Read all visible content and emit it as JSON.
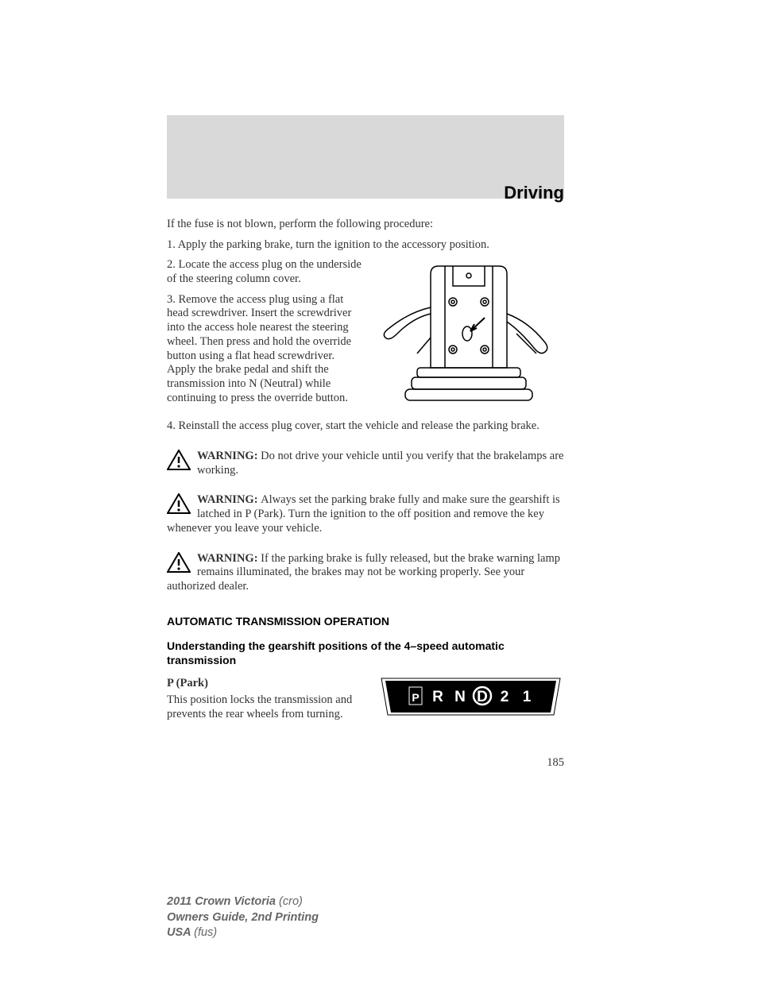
{
  "chapter": "Driving",
  "intro": "If the fuse is not blown, perform the following procedure:",
  "steps": {
    "s1": "1. Apply the parking brake, turn the ignition to the accessory position.",
    "s2": "2. Locate the access plug on the underside of the steering column cover.",
    "s3": "3. Remove the access plug using a flat head screwdriver. Insert the screwdriver into the access hole nearest the steering wheel. Then press and hold the override button using a flat head screwdriver. Apply the brake pedal and shift the transmission into N (Neutral) while continuing to press the override button.",
    "s4": "4. Reinstall the access plug cover, start the vehicle and release the parking brake."
  },
  "warnings": {
    "label": "WARNING: ",
    "w1": "Do not drive your vehicle until you verify that the brakelamps are working.",
    "w2": "Always set the parking brake fully and make sure the gearshift is latched in P (Park). Turn the ignition to the off position and remove the key whenever you leave your vehicle.",
    "w3": "If the parking brake is fully released, but the brake warning lamp remains illuminated, the brakes may not be working properly. See your authorized dealer."
  },
  "section": {
    "heading": "AUTOMATIC TRANSMISSION OPERATION",
    "sub": "Understanding the gearshift positions of the 4–speed automatic transmission",
    "p_title": "P (Park)",
    "p_body": "This position locks the transmission and prevents the rear wheels from turning."
  },
  "gear_indicator": {
    "chars": [
      "P",
      "R",
      "N",
      "D",
      "2",
      "1"
    ],
    "selected_index": 0,
    "circled_index": 3,
    "bg": "#000000",
    "fg": "#ffffff"
  },
  "page_number": "185",
  "footer": {
    "l1a": "2011 Crown Victoria ",
    "l1b": "(cro)",
    "l2": "Owners Guide, 2nd Printing",
    "l3a": "USA ",
    "l3b": "(fus)"
  },
  "colors": {
    "gray_box": "#d9d9d9",
    "text": "#333333",
    "footer": "#666666"
  }
}
